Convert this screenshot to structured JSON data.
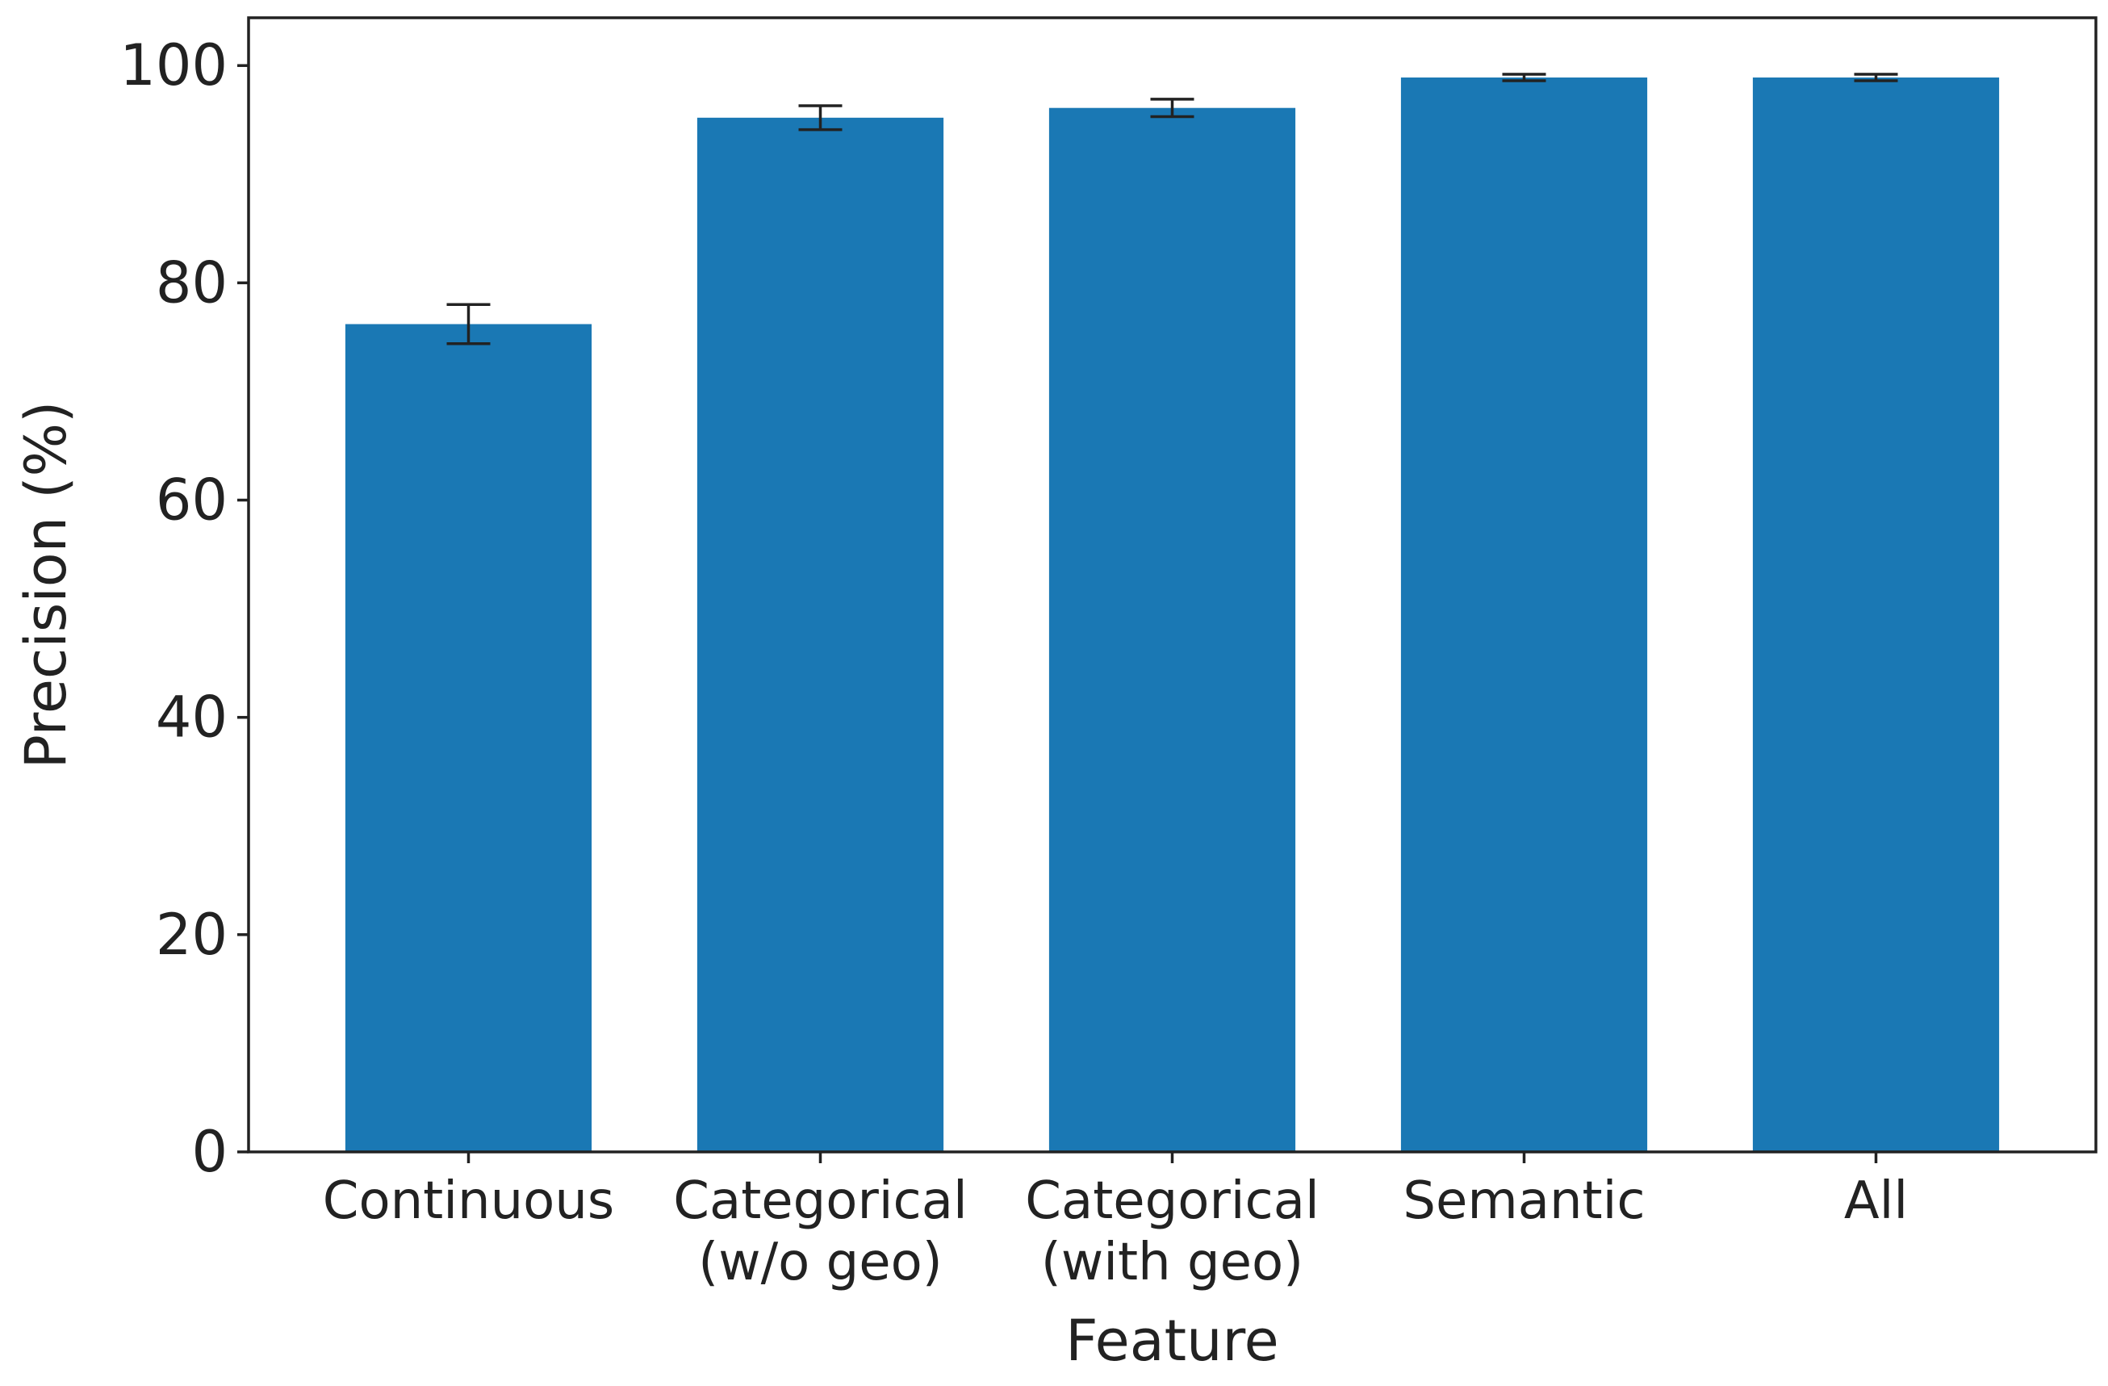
{
  "chart_data": {
    "type": "bar",
    "title": "",
    "xlabel": "Feature",
    "ylabel": "Precision (%)",
    "categories": [
      [
        "Continuous"
      ],
      [
        "Categorical",
        "(w/o geo)"
      ],
      [
        "Categorical",
        "(with geo)"
      ],
      [
        "Semantic"
      ],
      [
        "All"
      ]
    ],
    "values": [
      76.2,
      95.2,
      96.1,
      98.9,
      98.9
    ],
    "errors": [
      1.8,
      1.1,
      0.8,
      0.3,
      0.3
    ],
    "ylim": [
      0,
      104.4
    ],
    "yticks": [
      0,
      20,
      40,
      60,
      80,
      100
    ],
    "grid": false,
    "legend": "none",
    "bar_color": "#1a78b4",
    "axis_color": "#222222"
  }
}
